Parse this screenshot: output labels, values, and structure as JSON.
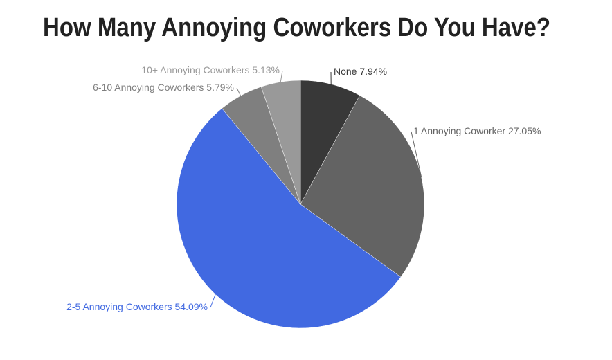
{
  "chart_data": {
    "type": "pie",
    "title": "How Many Annoying Coworkers Do You Have?",
    "categories": [
      "None",
      "1 Annoying Coworker",
      "2-5 Annoying Coworkers",
      "6-10 Annoying Coworkers",
      "10+ Annoying Coworkers"
    ],
    "values": [
      7.94,
      27.05,
      54.09,
      5.79,
      5.13
    ],
    "value_labels": [
      "7.94%",
      "27.05%",
      "54.09%",
      "5.79%",
      "5.13%"
    ],
    "colors": [
      "#383838",
      "#636363",
      "#4169e1",
      "#7f7f7f",
      "#999999"
    ]
  }
}
